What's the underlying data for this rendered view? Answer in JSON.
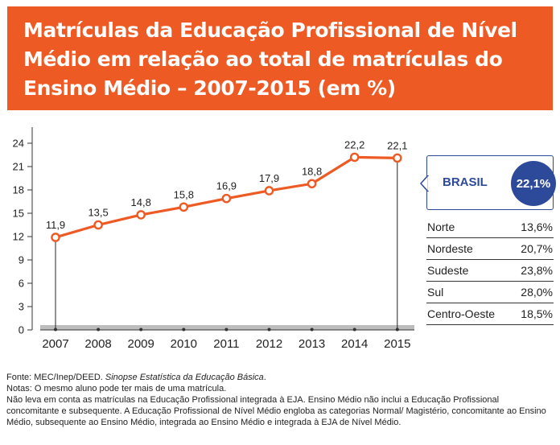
{
  "header": {
    "title": "Matrículas da Educação Profissional de Nível Médio em relação ao total de matrículas do Ensino Médio – 2007-2015 (em %)"
  },
  "colors": {
    "accent": "#ee5a24",
    "brand_blue": "#2d4a9a",
    "baseline_band": "#bdbdbd"
  },
  "chart_data": {
    "type": "line",
    "title": "Matrículas da Educação Profissional de Nível Médio em relação ao total de matrículas do Ensino Médio – 2007-2015 (em %)",
    "x": [
      "2007",
      "2008",
      "2009",
      "2010",
      "2011",
      "2012",
      "2013",
      "2014",
      "2015"
    ],
    "series": [
      {
        "values": [
          11.9,
          13.5,
          14.8,
          15.8,
          16.9,
          17.9,
          18.8,
          22.2,
          22.1
        ]
      }
    ],
    "data_labels": [
      "11,9",
      "13,5",
      "14,8",
      "15,8",
      "16,9",
      "17,9",
      "18,8",
      "22,2",
      "22,1"
    ],
    "y_ticks": [
      "0",
      "3",
      "6",
      "9",
      "12",
      "15",
      "18",
      "21",
      "24"
    ],
    "ylim": [
      0,
      24
    ],
    "grid": false,
    "highlighted_points": [
      "2007",
      "2015"
    ]
  },
  "sidebar": {
    "brasil_label": "BRASIL",
    "brasil_value": "22,1%",
    "regions": [
      {
        "name": "Norte",
        "value": "13,6%"
      },
      {
        "name": "Nordeste",
        "value": "20,7%"
      },
      {
        "name": "Sudeste",
        "value": "23,8%"
      },
      {
        "name": "Sul",
        "value": "28,0%"
      },
      {
        "name": "Centro-Oeste",
        "value": "18,5%"
      }
    ]
  },
  "footer": {
    "source_prefix": "Fonte: MEC/Inep/DEED. ",
    "source_title": "Sinopse Estatística da Educação Básica",
    "source_suffix": ".",
    "note1": "Notas: O mesmo aluno pode ter mais de uma matrícula.",
    "note2": "Não leva em conta as matrículas na Educação Profissional integrada à EJA. Ensino Médio não inclui a Educação Profissional concomitante e subsequente. A Educação Profissional de Nível Médio engloba as categorias Normal/ Magistério, concomitante ao Ensino Médio, subsequente ao Ensino Médio, integrada ao Ensino Médio e integrada à EJA de Nível Médio."
  }
}
